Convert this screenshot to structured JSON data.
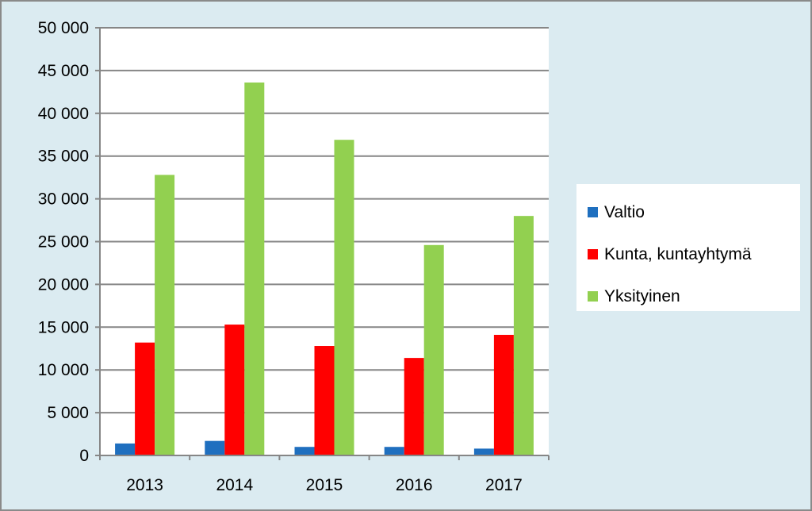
{
  "chart_data": {
    "type": "bar",
    "title": "",
    "xlabel": "",
    "ylabel": "",
    "categories": [
      "2013",
      "2014",
      "2015",
      "2016",
      "2017"
    ],
    "series": [
      {
        "name": "Valtio",
        "color": "#1f6fbf",
        "values": [
          1400,
          1700,
          1000,
          1000,
          800
        ]
      },
      {
        "name": "Kunta, kuntayhtymä",
        "color": "#ff0000",
        "values": [
          13200,
          15300,
          12800,
          11400,
          14100
        ]
      },
      {
        "name": "Yksityinen",
        "color": "#92d050",
        "values": [
          32800,
          43600,
          36900,
          24600,
          28000
        ]
      }
    ],
    "ylim": [
      0,
      50000
    ],
    "yticks": [
      0,
      5000,
      10000,
      15000,
      20000,
      25000,
      30000,
      35000,
      40000,
      45000,
      50000
    ],
    "ytick_labels": [
      "0",
      "5 000",
      "10 000",
      "15 000",
      "20 000",
      "25 000",
      "30 000",
      "35 000",
      "40 000",
      "45 000",
      "50 000"
    ],
    "grid": true,
    "legend_position": "right"
  }
}
